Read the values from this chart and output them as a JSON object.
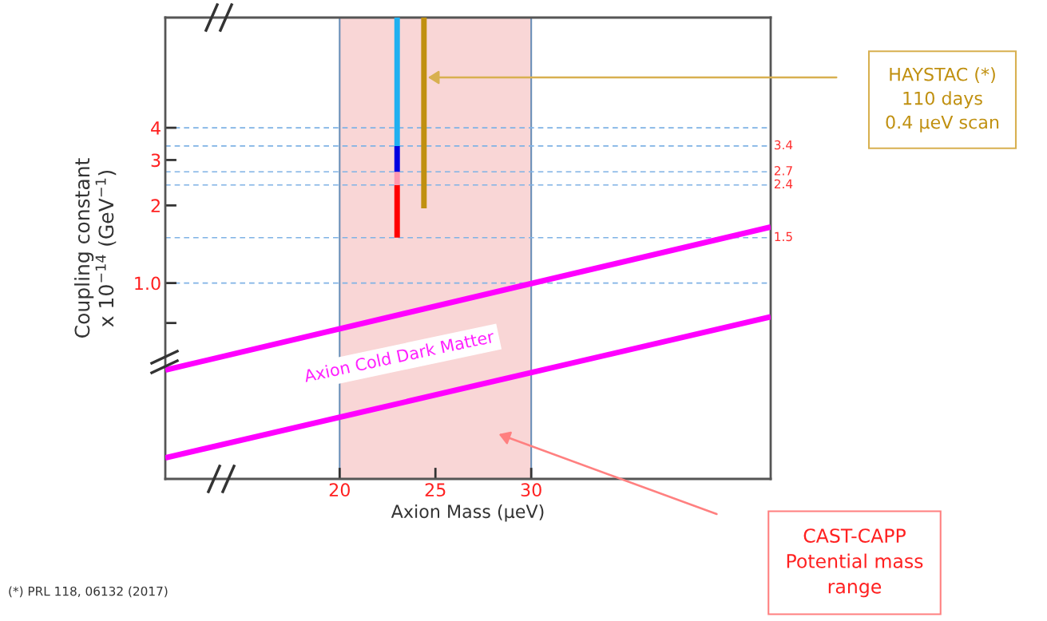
{
  "chart_data": {
    "type": "line",
    "xlabel": "Axion Mass (μeV)",
    "ylabel": "Coupling constant\nx 10$^{−14}$ (GeV$^{−1}$)",
    "log": "y",
    "xlim": [
      10.9,
      42.5
    ],
    "xticks": [
      20,
      25,
      30
    ],
    "ylim": [
      0.174,
      10.7
    ],
    "yticks": [
      {
        "value": 0.7,
        "label": null
      },
      {
        "value": 1.0,
        "label": "1.0"
      },
      2,
      3,
      4
    ],
    "grid": false,
    "series": [
      {
        "x": [
          23,
          23
        ],
        "values": [
          1.5,
          2.4
        ],
        "color": "#ff0000"
      },
      {
        "x": [
          23,
          23
        ],
        "values": [
          2.4,
          2.7
        ],
        "color": "#ff9ab0"
      },
      {
        "x": [
          23,
          23
        ],
        "values": [
          2.7,
          3.4
        ],
        "color": "#0000e0"
      },
      {
        "x": [
          23,
          23
        ],
        "values": [
          3.4,
          10.7
        ],
        "color": "#20b0f0"
      },
      {
        "x": [
          24.4,
          24.4
        ],
        "values": [
          1.95,
          10.7
        ],
        "color": "#c09010"
      },
      {
        "x": [
          10.9,
          42.5
        ],
        "values": [
          0.46,
          1.65
        ],
        "color": "#ff00ff"
      },
      {
        "x": [
          10.9,
          42.5
        ],
        "values": [
          0.21,
          0.74
        ],
        "color": "#ff00ff"
      }
    ],
    "bands": [
      {
        "axis": "x",
        "from": 20,
        "to": 30,
        "color": "#f9d6d6"
      }
    ],
    "ref_lines": [
      {
        "axis": "y",
        "value": 4,
        "label": null,
        "color": "#7fb2e5",
        "line_style": "dashed"
      },
      {
        "axis": "y",
        "value": 3.4,
        "label": "3.4",
        "color": "#7fb2e5",
        "line_style": "dashed"
      },
      {
        "axis": "y",
        "value": 2.7,
        "label": "2.7",
        "color": "#7fb2e5",
        "line_style": "dashed"
      },
      {
        "axis": "y",
        "value": 2.4,
        "label": "2.4",
        "color": "#7fb2e5",
        "line_style": "dashed"
      },
      {
        "axis": "y",
        "value": 1.5,
        "label": "1.5",
        "color": "#7fb2e5",
        "line_style": "dashed"
      },
      {
        "axis": "y",
        "value": 1.0,
        "label": null,
        "color": "#7fb2e5",
        "line_style": "dashed"
      }
    ],
    "annotations": [
      "HAYSTAC (*)\n110 days\n0.4 μeV scan",
      "CAST-CAPP\nPotential mass\nrange",
      "Axion Cold Dark Matter",
      "(*) PRL 118, 06132 (2017)"
    ]
  }
}
